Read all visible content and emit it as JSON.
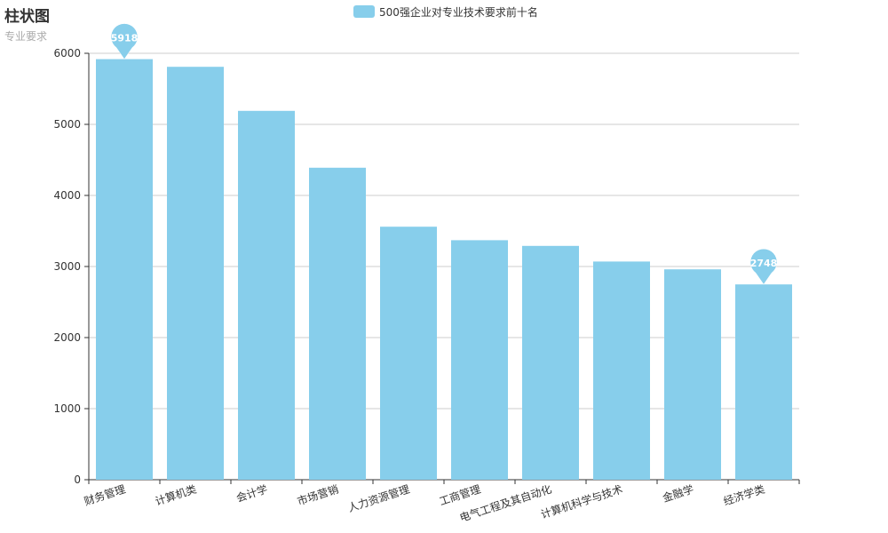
{
  "chart_data": {
    "type": "bar",
    "title": "柱状图",
    "subtitle": "专业要求",
    "legend_position": "top-center",
    "series": [
      {
        "name": "500强企业对专业技术要求前十名",
        "color": "#87CEEB",
        "values": [
          5918,
          5810,
          5190,
          4390,
          3560,
          3370,
          3290,
          3070,
          2960,
          2748
        ]
      }
    ],
    "categories": [
      "财务管理",
      "计算机类",
      "会计学",
      "市场营销",
      "人力资源管理",
      "工商管理",
      "电气工程及其自动化",
      "计算机科学与技术",
      "金融学",
      "经济学类"
    ],
    "ylim": [
      0,
      6000
    ],
    "yticks": [
      0,
      1000,
      2000,
      3000,
      4000,
      5000,
      6000
    ],
    "grid": true,
    "markers": [
      {
        "category": "财务管理",
        "value": 5918,
        "label": "5918"
      },
      {
        "category": "经济学类",
        "value": 2748,
        "label": "2748"
      }
    ]
  }
}
